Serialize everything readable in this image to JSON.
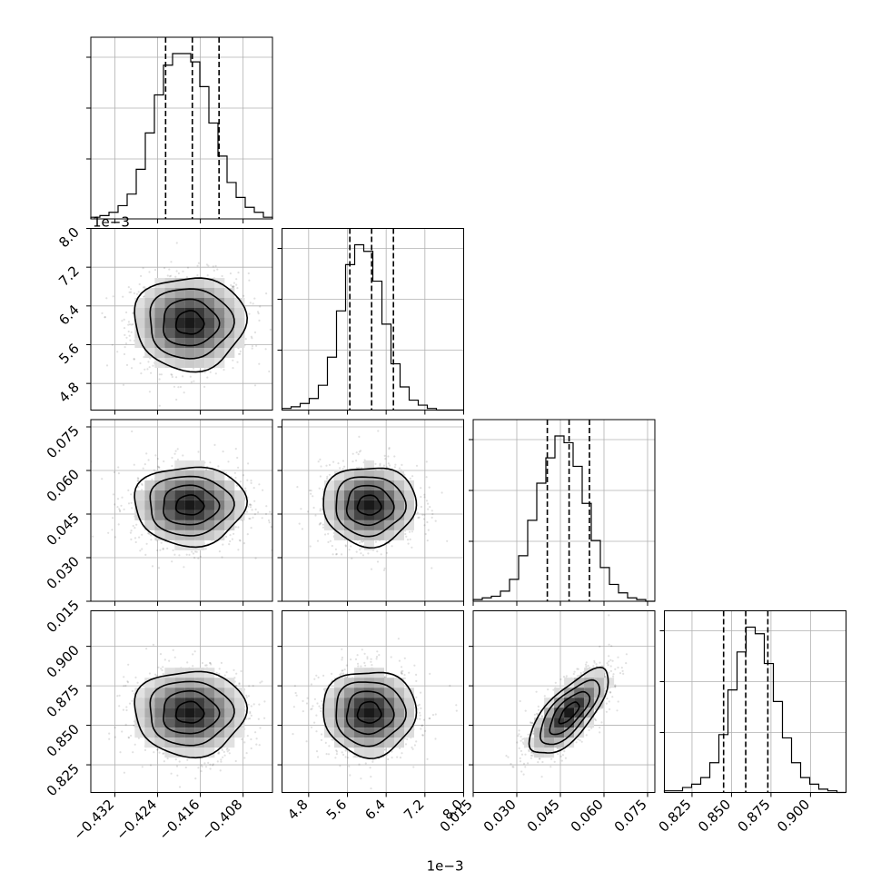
{
  "chart_data": {
    "type": "corner",
    "title": "",
    "parameters": [
      {
        "range": [
          -0.4365,
          -0.4025
        ],
        "ticks": [
          -0.432,
          -0.424,
          -0.416,
          -0.408
        ],
        "tick_labels": [
          "−0.432",
          "−0.424",
          "−0.416",
          "−0.408"
        ],
        "offset_text": "",
        "quantiles": [
          -0.4225,
          -0.4175,
          -0.4125
        ],
        "peak": -0.418,
        "sigma": 0.0052,
        "hist_counts": [
          1,
          2,
          4,
          8,
          15,
          30,
          52,
          75,
          93,
          100,
          100,
          95,
          80,
          58,
          38,
          22,
          13,
          7,
          4,
          1
        ]
      },
      {
        "range": [
          4.25,
          8.0
        ],
        "ticks": [
          4.8,
          5.6,
          6.4,
          7.2,
          8.0
        ],
        "tick_labels": [
          "4.8",
          "5.6",
          "6.4",
          "7.2",
          "8.0"
        ],
        "offset_text": "1e−3",
        "quantiles": [
          5.65,
          6.1,
          6.55
        ],
        "peak": 6.05,
        "sigma": 0.48,
        "hist_counts": [
          1,
          2,
          4,
          7,
          15,
          32,
          60,
          88,
          100,
          96,
          78,
          52,
          28,
          14,
          6,
          3,
          1,
          0,
          0,
          0
        ]
      },
      {
        "range": [
          0.015,
          0.0775
        ],
        "ticks": [
          0.015,
          0.03,
          0.045,
          0.06,
          0.075
        ],
        "tick_labels": [
          "0.015",
          "0.030",
          "0.045",
          "0.060",
          "0.075"
        ],
        "offset_text": "",
        "quantiles": [
          0.0405,
          0.048,
          0.055
        ],
        "peak": 0.048,
        "sigma": 0.0068,
        "hist_counts": [
          1,
          2,
          3,
          6,
          13,
          27,
          48,
          70,
          85,
          98,
          94,
          80,
          58,
          36,
          20,
          10,
          5,
          2,
          1,
          0
        ]
      },
      {
        "range": [
          0.8075,
          0.9225
        ],
        "ticks": [
          0.825,
          0.85,
          0.875,
          0.9
        ],
        "tick_labels": [
          "0.825",
          "0.850",
          "0.875",
          "0.900"
        ],
        "offset_text": "",
        "quantiles": [
          0.845,
          0.859,
          0.873
        ],
        "peak": 0.858,
        "sigma": 0.0135,
        "hist_counts": [
          1,
          1,
          3,
          5,
          9,
          18,
          35,
          62,
          85,
          100,
          96,
          78,
          55,
          33,
          18,
          9,
          5,
          2,
          1,
          0
        ]
      }
    ],
    "correlations": [
      {
        "x": 0,
        "y": 1,
        "rho": 0.0
      },
      {
        "x": 0,
        "y": 2,
        "rho": 0.0
      },
      {
        "x": 1,
        "y": 2,
        "rho": 0.0
      },
      {
        "x": 0,
        "y": 3,
        "rho": 0.0
      },
      {
        "x": 1,
        "y": 3,
        "rho": 0.0
      },
      {
        "x": 2,
        "y": 3,
        "rho": 0.72
      }
    ],
    "grid": true,
    "contour_levels": 4
  }
}
